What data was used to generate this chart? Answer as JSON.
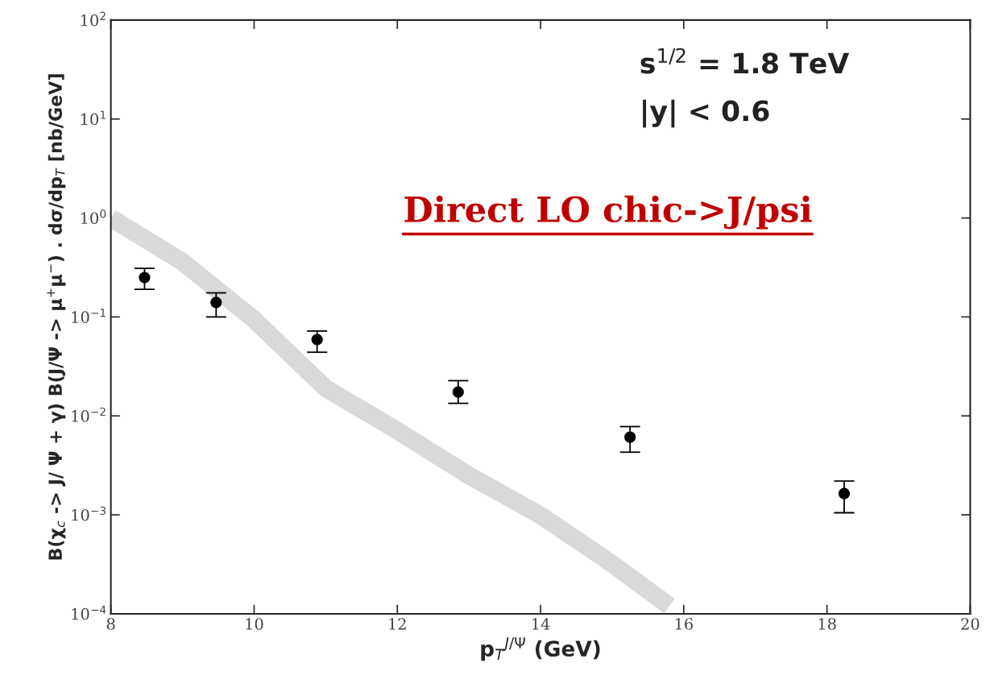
{
  "chart_data": {
    "type": "scatter",
    "xlabel": "p$_{T}$$^{J/Ψ}$ (GeV)",
    "ylabel": "B(χ$_{c}$ -> J/ Ψ + γ) B(J/Ψ -> μ$^{+}$μ$^{−}$) . dσ/dp$_{T}$ [nb/GeV]",
    "annotations": [
      "s$^{1/2}$ = 1.8 TeV",
      "|y| < 0.6",
      "Direct LO chic->J/psi"
    ],
    "log": "y",
    "grid": false,
    "xlim": [
      8,
      20
    ],
    "xticks": [
      8,
      10,
      12,
      14,
      16,
      18,
      20
    ],
    "ylim": [
      0.0001,
      100
    ],
    "yticks": [
      {
        "value": 0.0001,
        "label": "10$^{−4}$"
      },
      {
        "value": 0.001,
        "label": "10$^{−3}$"
      },
      {
        "value": 0.01,
        "label": "10$^{−2}$"
      },
      {
        "value": 0.1,
        "label": "10$^{−1}$"
      },
      {
        "value": 1,
        "label": "10$^{0}$"
      },
      {
        "value": 10,
        "label": "10$^{1}$"
      },
      {
        "value": 100,
        "label": "10$^{2}$"
      }
    ],
    "series": [
      {
        "type": "line",
        "color": "#d9d9d9",
        "x": [
          8,
          9,
          10,
          11,
          12,
          13,
          14,
          15,
          15.8
        ],
        "values": [
          1.0,
          0.36,
          0.094,
          0.019,
          0.0071,
          0.0025,
          0.00099,
          0.00032,
          0.00012
        ]
      },
      {
        "color": "#000000",
        "marker": "circle",
        "x": [
          8.47,
          9.47,
          10.88,
          12.85,
          15.25,
          18.24
        ],
        "values": [
          0.25,
          0.14,
          0.059,
          0.0174,
          0.0061,
          0.00164
        ],
        "errors": [
          [
            0.19,
            0.31
          ],
          [
            0.1,
            0.175
          ],
          [
            0.044,
            0.072
          ],
          [
            0.0134,
            0.0227
          ],
          [
            0.0043,
            0.0078
          ],
          [
            0.00105,
            0.0022
          ]
        ]
      }
    ]
  }
}
